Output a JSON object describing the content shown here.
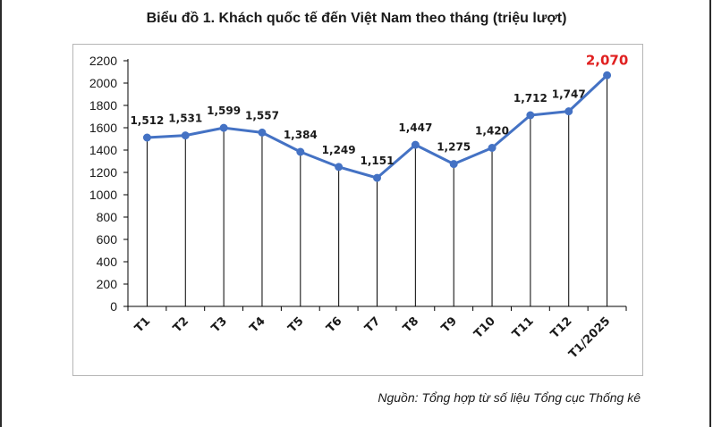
{
  "page": {
    "title": "Biểu đồ 1. Khách quốc tế đến Việt Nam theo tháng (triệu lượt)",
    "source": "Nguồn: Tổng hợp từ số liệu Tổng cục Thống kê"
  },
  "chart_data": {
    "type": "line",
    "title": "Biểu đồ 1. Khách quốc tế đến Việt Nam theo tháng (triệu lượt)",
    "xlabel": "",
    "ylabel": "",
    "categories": [
      "T1",
      "T2",
      "T3",
      "T4",
      "T5",
      "T6",
      "T7",
      "T8",
      "T9",
      "T10",
      "T11",
      "T12",
      "T1/2025"
    ],
    "values": [
      1512,
      1531,
      1599,
      1557,
      1384,
      1249,
      1151,
      1447,
      1275,
      1420,
      1712,
      1747,
      2070
    ],
    "data_labels": [
      "1,512",
      "1,531",
      "1,599",
      "1,557",
      "1,384",
      "1,249",
      "1,151",
      "1,447",
      "1,275",
      "1,420",
      "1,712",
      "1,747",
      "2,070"
    ],
    "yticks": [
      0,
      200,
      400,
      600,
      800,
      1000,
      1200,
      1400,
      1600,
      1800,
      2000,
      2200
    ],
    "ylim": [
      0,
      2200
    ],
    "grid": false,
    "drop_lines": true,
    "legend": "none",
    "colors": {
      "line": "#4472c4",
      "marker": "#4472c4",
      "highlight_label": "#e02020",
      "label": "#1a1a1a",
      "axis": "#000000"
    }
  }
}
